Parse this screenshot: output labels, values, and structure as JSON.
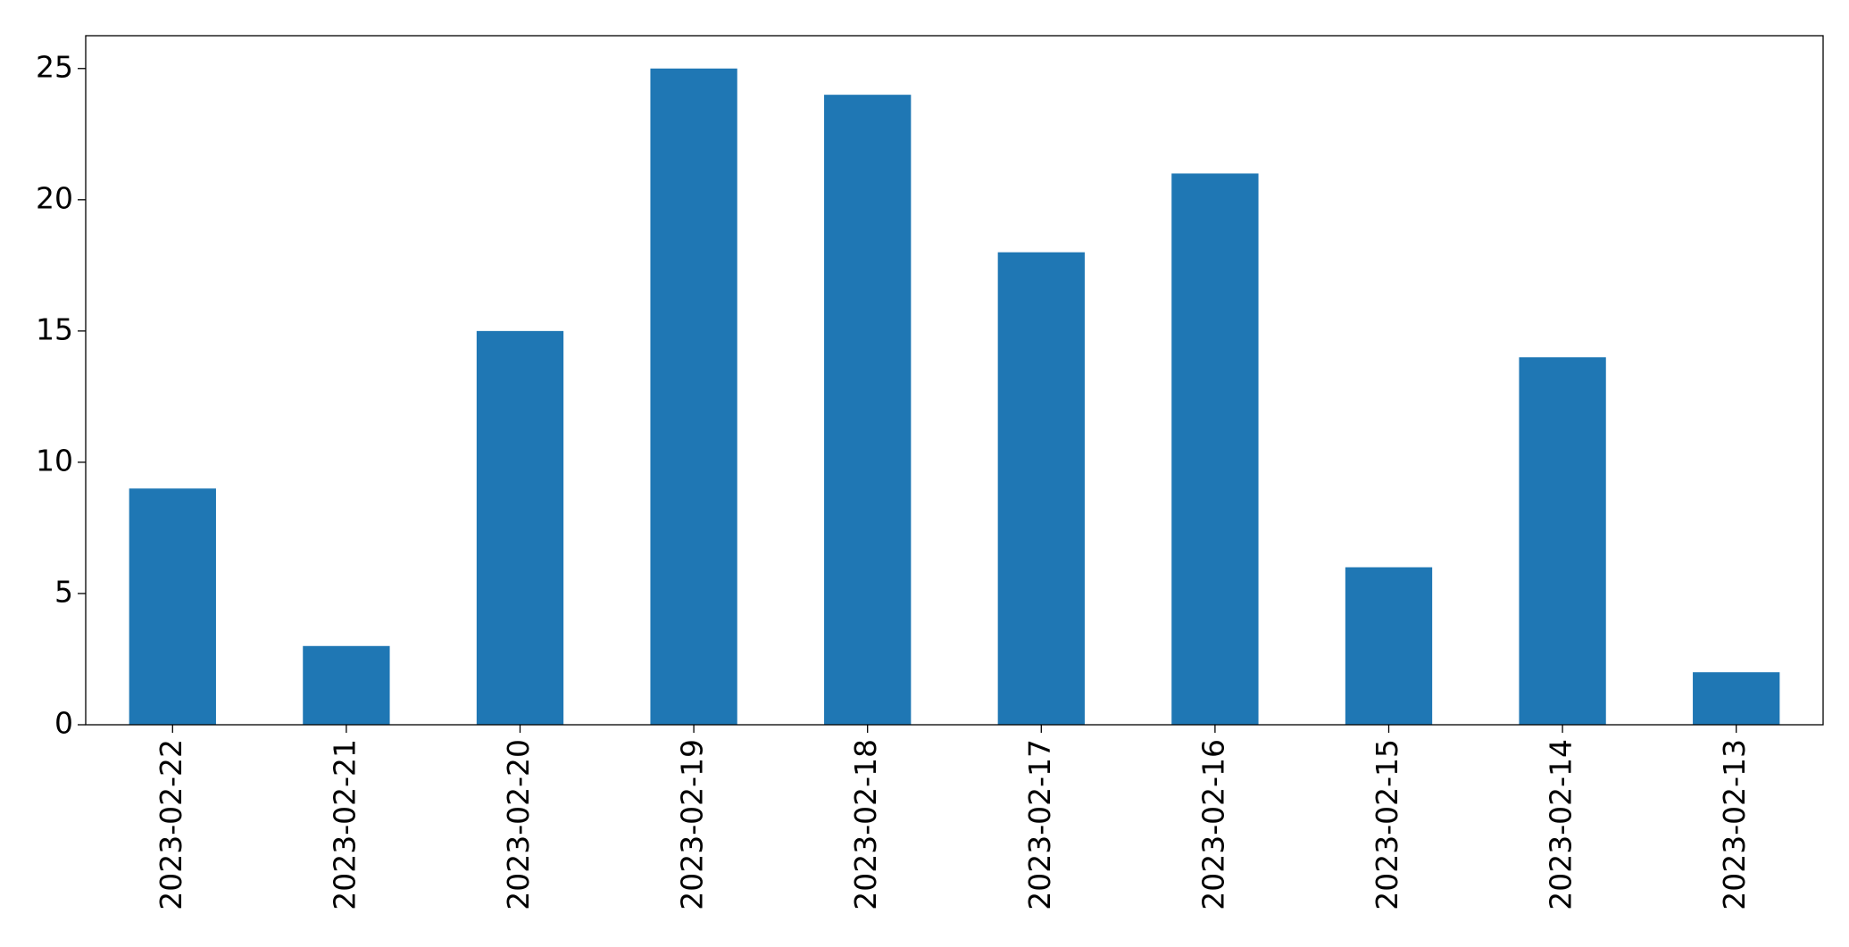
{
  "chart_data": {
    "type": "bar",
    "categories": [
      "2023-02-22",
      "2023-02-21",
      "2023-02-20",
      "2023-02-19",
      "2023-02-18",
      "2023-02-17",
      "2023-02-16",
      "2023-02-15",
      "2023-02-14",
      "2023-02-13"
    ],
    "values": [
      9,
      3,
      15,
      25,
      24,
      18,
      21,
      6,
      14,
      2
    ],
    "color": "#1f77b4",
    "ylim": [
      0,
      26.25
    ],
    "yticks": [
      0,
      5,
      10,
      15,
      20,
      25
    ],
    "grid": false
  }
}
